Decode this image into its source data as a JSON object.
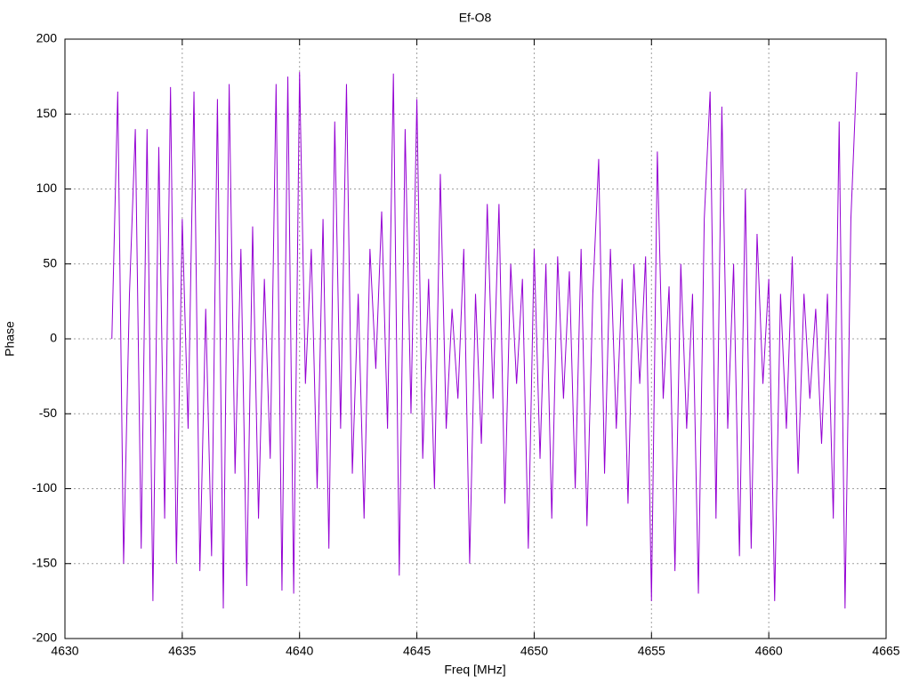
{
  "chart_data": {
    "type": "line",
    "title": "Ef-O8",
    "x_label": "Freq [MHz]",
    "y_label": "Phase",
    "xlim": [
      4630,
      4665
    ],
    "ylim": [
      -200,
      200
    ],
    "xticks": [
      4630,
      4635,
      4640,
      4645,
      4650,
      4655,
      4660,
      4665
    ],
    "yticks": [
      -200,
      -150,
      -100,
      -50,
      0,
      50,
      100,
      150,
      200
    ],
    "grid": true,
    "series": [
      {
        "color": "#9400d3",
        "x": [
          4632,
          4632.25,
          4632.5,
          4632.75,
          4633,
          4633.25,
          4633.5,
          4633.75,
          4634,
          4634.25,
          4634.5,
          4634.75,
          4635,
          4635.25,
          4635.5,
          4635.75,
          4636,
          4636.25,
          4636.5,
          4636.75,
          4637,
          4637.25,
          4637.5,
          4637.75,
          4638,
          4638.25,
          4638.5,
          4638.75,
          4639,
          4639.25,
          4639.5,
          4639.75,
          4640,
          4640.25,
          4640.5,
          4640.75,
          4641,
          4641.25,
          4641.5,
          4641.75,
          4642,
          4642.25,
          4642.5,
          4642.75,
          4643,
          4643.25,
          4643.5,
          4643.75,
          4644,
          4644.25,
          4644.5,
          4644.75,
          4645,
          4645.25,
          4645.5,
          4645.75,
          4646,
          4646.25,
          4646.5,
          4646.75,
          4647,
          4647.25,
          4647.5,
          4647.75,
          4648,
          4648.25,
          4648.5,
          4648.75,
          4649,
          4649.25,
          4649.5,
          4649.75,
          4650,
          4650.25,
          4650.5,
          4650.75,
          4651,
          4651.25,
          4651.5,
          4651.75,
          4652,
          4652.25,
          4652.5,
          4652.75,
          4653,
          4653.25,
          4653.5,
          4653.75,
          4654,
          4654.25,
          4654.5,
          4654.75,
          4655,
          4655.25,
          4655.5,
          4655.75,
          4656,
          4656.25,
          4656.5,
          4656.75,
          4657,
          4657.25,
          4657.5,
          4657.75,
          4658,
          4658.25,
          4658.5,
          4658.75,
          4659,
          4659.25,
          4659.5,
          4659.75,
          4660,
          4660.25,
          4660.5,
          4660.75,
          4661,
          4661.25,
          4661.5,
          4661.75,
          4662,
          4662.25,
          4662.5,
          4662.75,
          4663,
          4663.25,
          4663.5,
          4663.75
        ],
        "values": [
          0,
          165,
          -150,
          30,
          140,
          -140,
          140,
          -175,
          128,
          -120,
          168,
          -150,
          80,
          -60,
          165,
          -155,
          20,
          -145,
          160,
          -180,
          170,
          -90,
          60,
          -165,
          75,
          -120,
          40,
          -80,
          170,
          -168,
          175,
          -170,
          178,
          -30,
          60,
          -100,
          80,
          -140,
          145,
          -60,
          170,
          -90,
          30,
          -120,
          60,
          -20,
          85,
          -60,
          177,
          -158,
          140,
          -50,
          160,
          -80,
          40,
          -100,
          110,
          -60,
          20,
          -40,
          60,
          -150,
          30,
          -70,
          90,
          -40,
          90,
          -110,
          50,
          -30,
          40,
          -140,
          60,
          -80,
          50,
          -120,
          55,
          -40,
          45,
          -100,
          60,
          -125,
          30,
          120,
          -90,
          60,
          -60,
          40,
          -110,
          50,
          -30,
          55,
          -175,
          125,
          -40,
          35,
          -155,
          50,
          -60,
          30,
          -170,
          80,
          165,
          -120,
          155,
          -60,
          50,
          -145,
          100,
          -140,
          70,
          -30,
          40,
          -175,
          30,
          -60,
          55,
          -90,
          30,
          -40,
          20,
          -70,
          30,
          -120,
          145,
          -180,
          80,
          178
        ]
      }
    ]
  }
}
